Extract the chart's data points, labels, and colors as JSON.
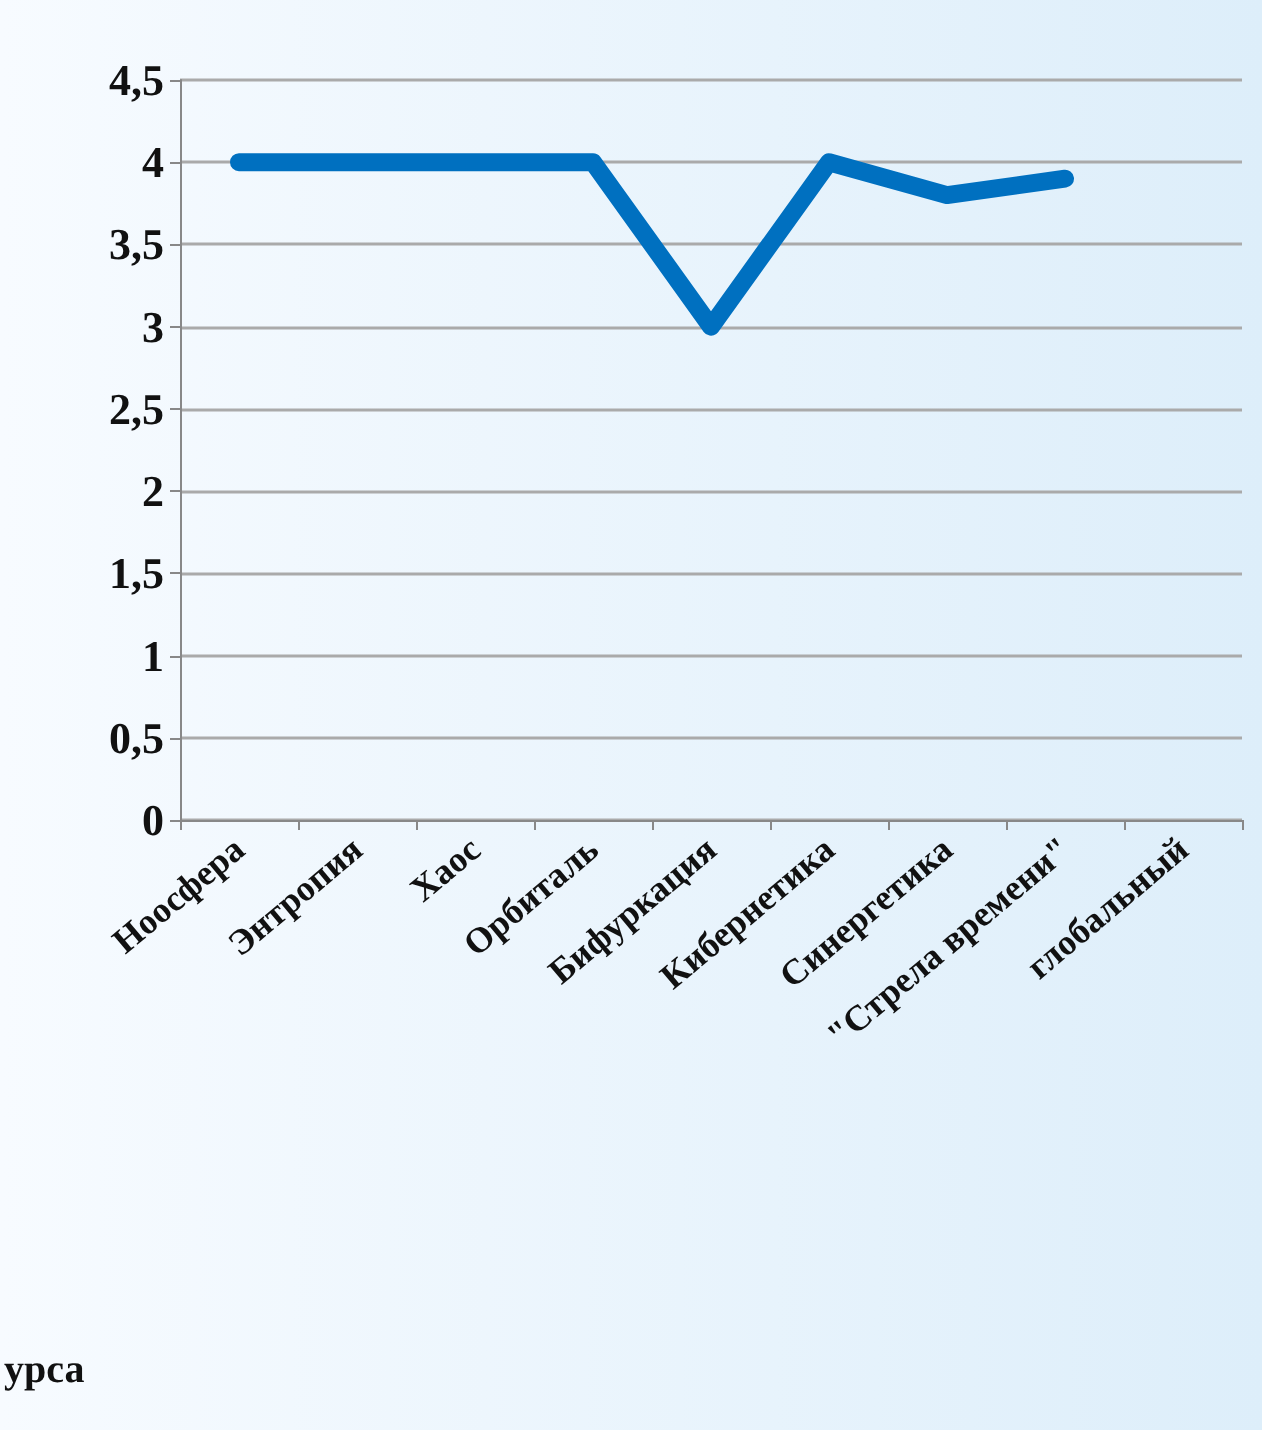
{
  "chart_data": {
    "type": "line",
    "categories": [
      "Ноосфера",
      "Энтропия",
      "Хаос",
      "Орбиталь",
      "Бифуркация",
      "Кибернетика",
      "Синергетика",
      "\"Стрела времени\"",
      "глобальный"
    ],
    "series": [
      {
        "color": "#0070c0",
        "values": [
          4,
          4,
          4,
          4,
          3,
          4,
          3.8,
          3.9,
          null
        ]
      }
    ],
    "ylim": [
      0,
      4.5
    ],
    "yticks": [
      {
        "value": 0,
        "label": "0"
      },
      {
        "value": 0.5,
        "label": "0,5"
      },
      {
        "value": 1,
        "label": "1"
      },
      {
        "value": 1.5,
        "label": "1,5"
      },
      {
        "value": 2,
        "label": "2"
      },
      {
        "value": 2.5,
        "label": "2,5"
      },
      {
        "value": 3,
        "label": "3"
      },
      {
        "value": 3.5,
        "label": "3,5"
      },
      {
        "value": 4,
        "label": "4"
      },
      {
        "value": 4.5,
        "label": "4,5"
      }
    ],
    "grid": "y",
    "marker": "none",
    "line_style": "solid",
    "annotations": [
      "урса"
    ]
  }
}
